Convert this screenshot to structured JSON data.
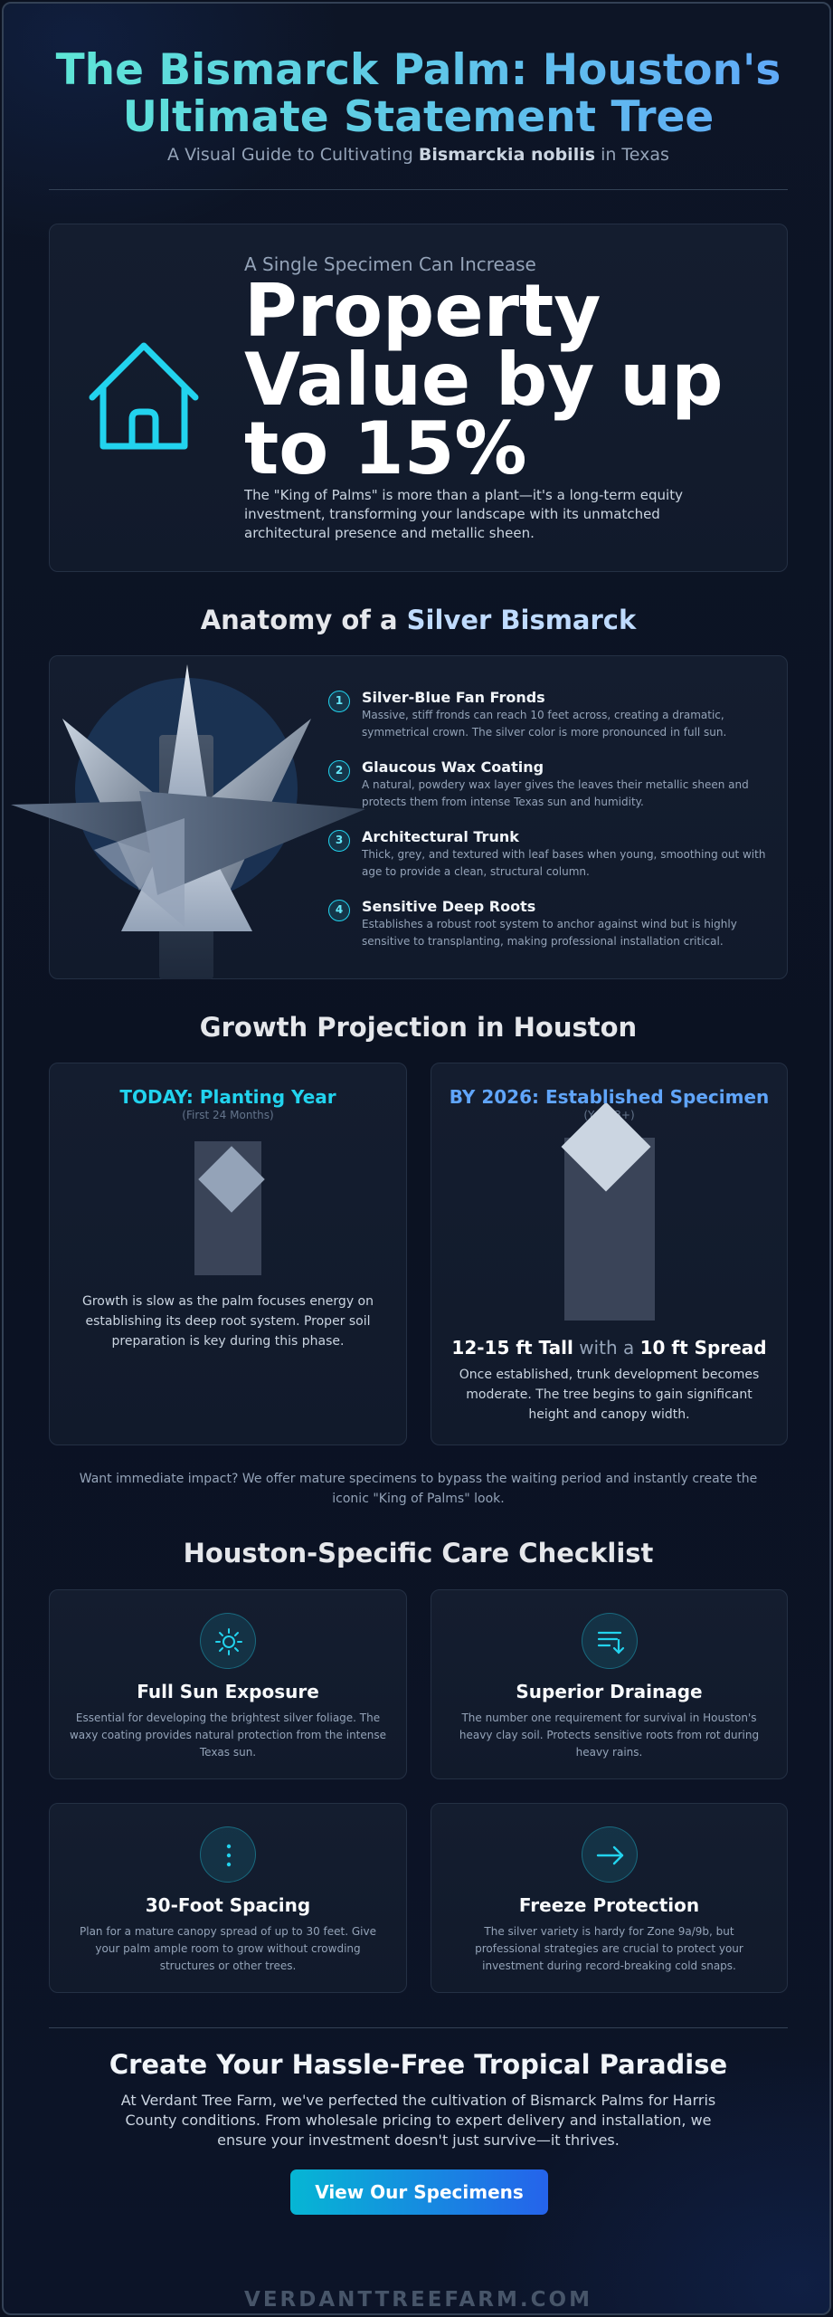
{
  "header": {
    "title_line1": "The Bismarck Palm: Houston's",
    "title_line2": "Ultimate Statement Tree",
    "subtitle_pre": "A Visual Guide to Cultivating ",
    "subtitle_bold": "Bismarckia nobilis",
    "subtitle_post": " in Texas"
  },
  "hero": {
    "kicker": "A Single Specimen Can Increase",
    "headline": "Property Value by up to 15%",
    "description": "The \"King of Palms\" is more than a plant—it's a long-term equity investment, transforming your landscape with its unmatched architectural presence and metallic sheen.",
    "icon": "house-icon"
  },
  "anatomy": {
    "heading_pre": "Anatomy of a ",
    "heading_accent": "Silver Bismarck",
    "features": [
      {
        "num": "1",
        "title": "Silver-Blue Fan Fronds",
        "desc": "Massive, stiff fronds can reach 10 feet across, creating a dramatic, symmetrical crown. The silver color is more pronounced in full sun."
      },
      {
        "num": "2",
        "title": "Glaucous Wax Coating",
        "desc": "A natural, powdery wax layer gives the leaves their metallic sheen and protects them from intense Texas sun and humidity."
      },
      {
        "num": "3",
        "title": "Architectural Trunk",
        "desc": "Thick, grey, and textured with leaf bases when young, smoothing out with age to provide a clean, structural column."
      },
      {
        "num": "4",
        "title": "Sensitive Deep Roots",
        "desc": "Establishes a robust root system to anchor against wind but is highly sensitive to transplanting, making professional installation critical."
      }
    ]
  },
  "growth": {
    "heading": "Growth Projection in Houston",
    "today": {
      "title": "TODAY: Planting Year",
      "sub": "(First 24 Months)",
      "text": "Growth is slow as the palm focuses energy on establishing its deep root system. Proper soil preparation is key during this phase."
    },
    "future": {
      "title": "BY 2026: Established Specimen",
      "sub": "(Year 3+)",
      "stat_tall": "12-15 ft Tall",
      "stat_mid": " with a ",
      "stat_spread": "10 ft Spread",
      "text": "Once established, trunk development becomes moderate. The tree begins to gain significant height and canopy width."
    },
    "note": "Want immediate impact? We offer mature specimens to bypass the waiting period and instantly create the iconic \"King of Palms\" look."
  },
  "care": {
    "heading": "Houston-Specific Care Checklist",
    "items": [
      {
        "icon": "sun-icon",
        "title": "Full Sun Exposure",
        "desc": "Essential for developing the brightest silver foliage. The waxy coating provides natural protection from the intense Texas sun."
      },
      {
        "icon": "drainage-icon",
        "title": "Superior Drainage",
        "desc": "The number one requirement for survival in Houston's heavy clay soil. Protects sensitive roots from rot during heavy rains."
      },
      {
        "icon": "spacing-icon",
        "title": "30-Foot Spacing",
        "desc": "Plan for a mature canopy spread of up to 30 feet. Give your palm ample room to grow without crowding structures or other trees."
      },
      {
        "icon": "arrow-right-icon",
        "title": "Freeze Protection",
        "desc": "The silver variety is hardy for Zone 9a/9b, but professional strategies are crucial to protect your investment during record-breaking cold snaps."
      }
    ]
  },
  "cta": {
    "heading": "Create Your Hassle-Free Tropical Paradise",
    "text": "At Verdant Tree Farm, we've perfected the cultivation of Bismarck Palms for Harris County conditions. From wholesale pricing to expert delivery and installation, we ensure your investment doesn't just survive—it thrives.",
    "button": "View Our Specimens"
  },
  "footer": {
    "url": "VERDANTTREEFARM.COM"
  },
  "colors": {
    "accent_cyan": "#22d3ee",
    "accent_blue": "#60a5fa",
    "background": "#0b1120"
  }
}
